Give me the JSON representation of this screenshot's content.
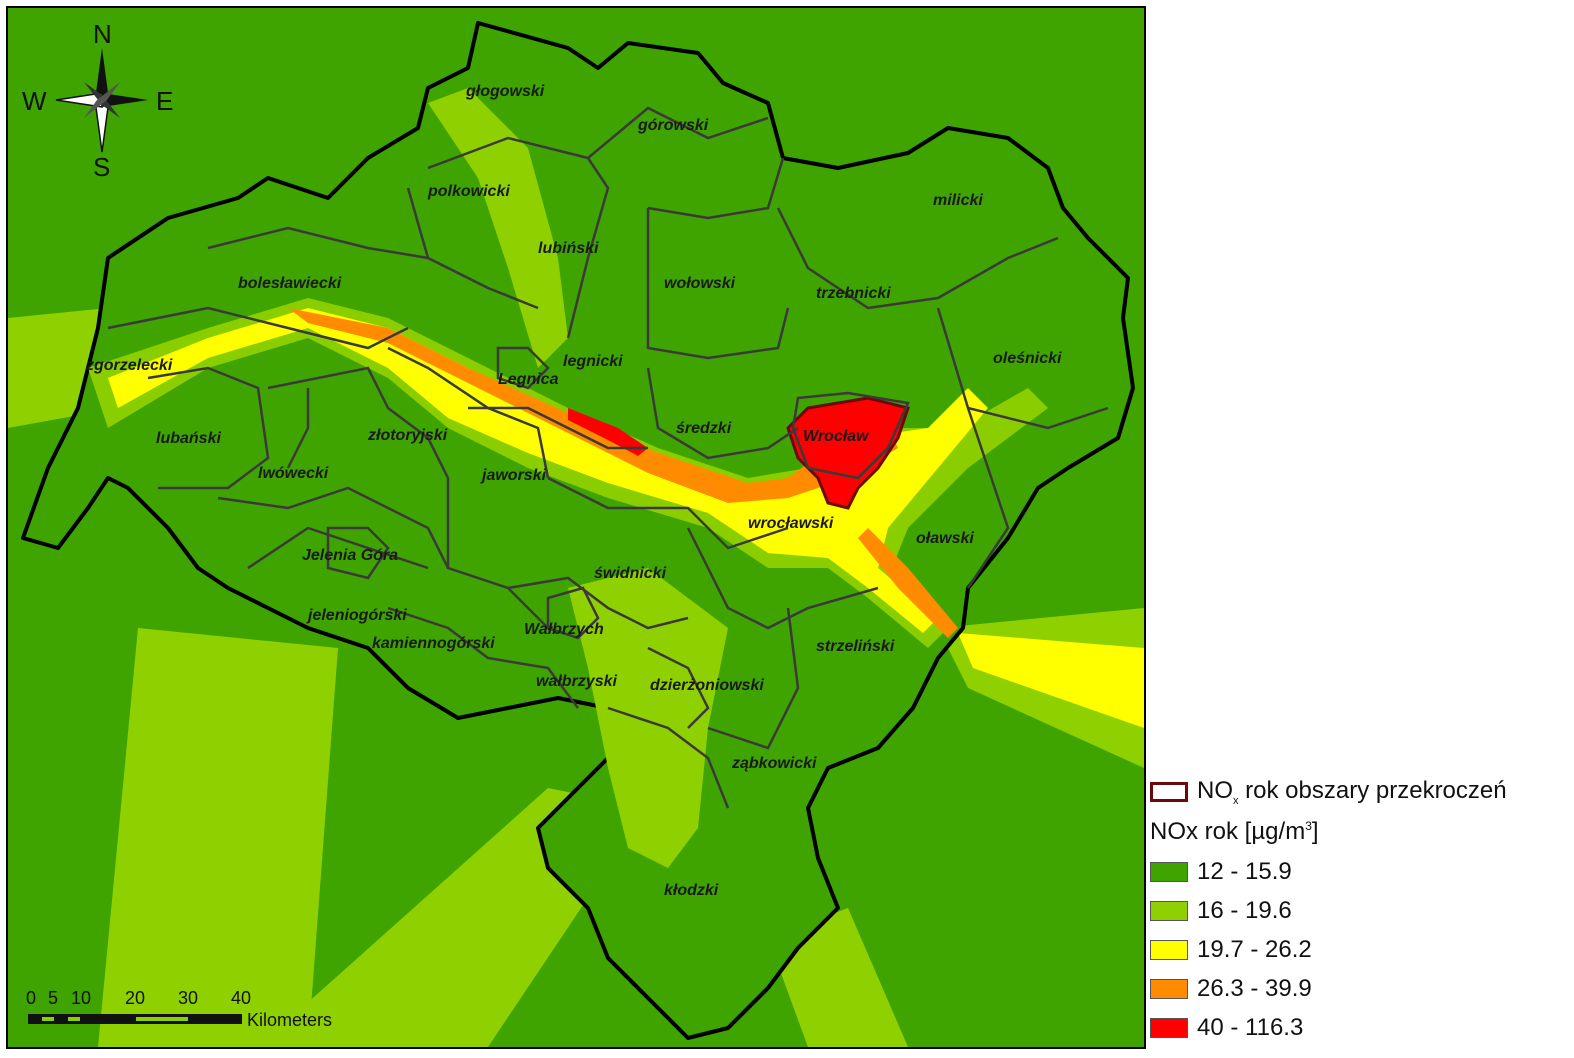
{
  "compass": {
    "n": "N",
    "s": "S",
    "e": "E",
    "w": "W"
  },
  "scale": {
    "ticks": [
      "0",
      "5",
      "10",
      "20",
      "30",
      "40"
    ],
    "unit": "Kilometers"
  },
  "legend": {
    "exceed_label_prefix": "NO",
    "exceed_label_sub": "x",
    "exceed_label_suffix": " rok obszary przekroczeń",
    "exceed_color": "#6b0a0a",
    "title_prefix": "NOx rok [µg/m",
    "title_sup": "3",
    "title_suffix": "]",
    "classes": [
      {
        "label": "12 - 15.9",
        "color": "#3fa300"
      },
      {
        "label": "16 - 19.6",
        "color": "#8fd100"
      },
      {
        "label": "19.7 - 26.2",
        "color": "#ffff00"
      },
      {
        "label": "26.3 - 39.9",
        "color": "#ff8c00"
      },
      {
        "label": "40 - 116.3",
        "color": "#ff0000"
      }
    ]
  },
  "counties": [
    "głogowski",
    "górowski",
    "polkowicki",
    "milicki",
    "lubiński",
    "wołowski",
    "bolesławiecki",
    "trzebnicki",
    "legnicki",
    "oleśnicki",
    "zgorzelecki",
    "Legnica",
    "średzki",
    "Wrocław",
    "lubański",
    "złotoryjski",
    "lwówecki",
    "jaworski",
    "wrocławski",
    "oławski",
    "Jelenia Góra",
    "świdnicki",
    "jeleniogórski",
    "Wałbrzych",
    "kamiennogórski",
    "strzeliński",
    "wałbrzyski",
    "dzierżoniowski",
    "ząbkowicki",
    "kłodzki"
  ]
}
